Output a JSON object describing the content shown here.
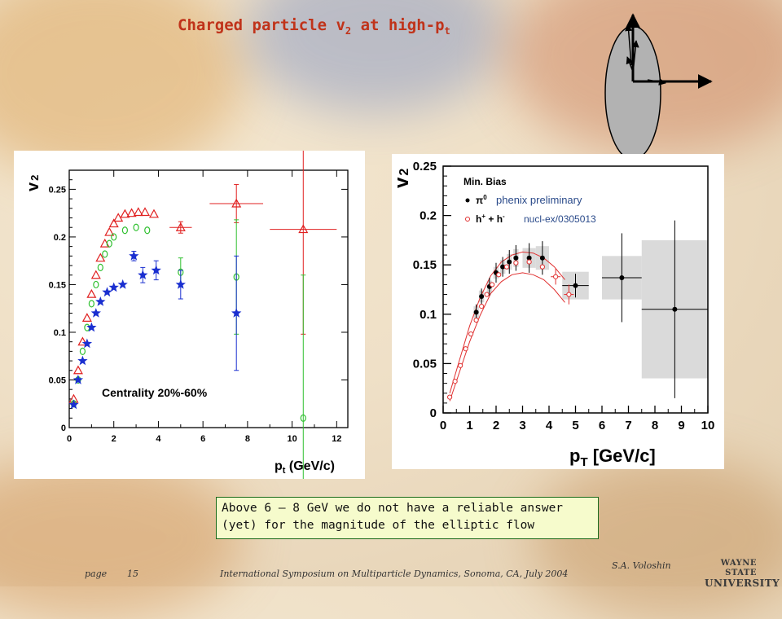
{
  "slide": {
    "title_main": "Charged particle v",
    "title_sub1": "2",
    "title_mid": " at high-p",
    "title_sub2": "t",
    "note_line1": "Above 6 – 8  GeV we do not have a reliable answer",
    "note_line2": "(yet) for the magnitude of the elliptic flow",
    "footer_page_label": "page",
    "footer_page_num": "15",
    "footer_conference": "International Symposium on Multiparticle  Dynamics, Sonoma, CA, July 2004",
    "footer_author": "S.A. Voloshin",
    "logo_line1": "WAYNE STATE",
    "logo_line2": "UNIVERSITY"
  },
  "chart_data": [
    {
      "type": "scatter",
      "ylabel": "v",
      "ylabel_sub": "2",
      "xlabel": "p",
      "xlabel_sub": "t",
      "xlabel_unit": " (GeV/c)",
      "annotation": "Centrality 20%-60%",
      "xlim": [
        0,
        12.5
      ],
      "ylim": [
        0,
        0.27
      ],
      "xticks": [
        "0",
        "2",
        "4",
        "6",
        "8",
        "10",
        "12"
      ],
      "yticks": [
        "0",
        "0.05",
        "0.1",
        "0.15",
        "0.2",
        "0.25"
      ],
      "series": [
        {
          "marker": "triangle",
          "color": "#e02020",
          "points": [
            {
              "x": 0.2,
              "y": 0.03
            },
            {
              "x": 0.4,
              "y": 0.06
            },
            {
              "x": 0.6,
              "y": 0.09
            },
            {
              "x": 0.8,
              "y": 0.115
            },
            {
              "x": 1.0,
              "y": 0.14
            },
            {
              "x": 1.2,
              "y": 0.16
            },
            {
              "x": 1.4,
              "y": 0.178
            },
            {
              "x": 1.6,
              "y": 0.193
            },
            {
              "x": 1.8,
              "y": 0.205
            },
            {
              "x": 2.0,
              "y": 0.214
            },
            {
              "x": 2.2,
              "y": 0.22
            },
            {
              "x": 2.5,
              "y": 0.224
            },
            {
              "x": 2.8,
              "y": 0.225
            },
            {
              "x": 3.1,
              "y": 0.226
            },
            {
              "x": 3.4,
              "y": 0.226
            },
            {
              "x": 3.8,
              "y": 0.224
            },
            {
              "x": 5.0,
              "y": 0.21,
              "xe": 0.5,
              "ye": 0.006
            },
            {
              "x": 7.5,
              "y": 0.235,
              "xe": 1.2,
              "ye": 0.02
            },
            {
              "x": 10.5,
              "y": 0.208,
              "xe": 1.5,
              "ye": 0.11
            }
          ]
        },
        {
          "marker": "circle",
          "color": "#30c030",
          "points": [
            {
              "x": 0.2,
              "y": 0.025
            },
            {
              "x": 0.4,
              "y": 0.05
            },
            {
              "x": 0.6,
              "y": 0.08
            },
            {
              "x": 0.8,
              "y": 0.105
            },
            {
              "x": 1.0,
              "y": 0.13
            },
            {
              "x": 1.2,
              "y": 0.15
            },
            {
              "x": 1.4,
              "y": 0.168
            },
            {
              "x": 1.6,
              "y": 0.182
            },
            {
              "x": 1.8,
              "y": 0.193
            },
            {
              "x": 2.0,
              "y": 0.2
            },
            {
              "x": 2.5,
              "y": 0.207
            },
            {
              "x": 3.0,
              "y": 0.21
            },
            {
              "x": 3.5,
              "y": 0.207
            },
            {
              "x": 5.0,
              "y": 0.163,
              "ye": 0.015
            },
            {
              "x": 7.5,
              "y": 0.158,
              "ye": 0.06
            },
            {
              "x": 10.5,
              "y": 0.01,
              "ye": 0.15
            }
          ]
        },
        {
          "marker": "star",
          "color": "#1a2fd0",
          "points": [
            {
              "x": 0.2,
              "y": 0.024
            },
            {
              "x": 0.4,
              "y": 0.05
            },
            {
              "x": 0.6,
              "y": 0.07
            },
            {
              "x": 0.8,
              "y": 0.088
            },
            {
              "x": 1.0,
              "y": 0.105
            },
            {
              "x": 1.2,
              "y": 0.12
            },
            {
              "x": 1.4,
              "y": 0.132
            },
            {
              "x": 1.7,
              "y": 0.142
            },
            {
              "x": 2.0,
              "y": 0.147
            },
            {
              "x": 2.4,
              "y": 0.15
            },
            {
              "x": 2.9,
              "y": 0.18,
              "ye": 0.005
            },
            {
              "x": 3.3,
              "y": 0.16,
              "ye": 0.008
            },
            {
              "x": 3.9,
              "y": 0.165,
              "ye": 0.01
            },
            {
              "x": 5.0,
              "y": 0.15,
              "ye": 0.015
            },
            {
              "x": 7.5,
              "y": 0.12,
              "ye": 0.06
            }
          ]
        }
      ]
    },
    {
      "type": "scatter",
      "ylabel": "v",
      "ylabel_sub": "2",
      "xlabel": "p",
      "xlabel_sub": "T",
      "xlabel_unit": " [GeV/c]",
      "legend_title": "Min. Bias",
      "legend_pi0": "π",
      "legend_pi0_sup": "0",
      "legend_h": "h",
      "legend_h_sup1": "+",
      "legend_h_plus": " + h",
      "legend_h_sup2": "-",
      "annotation_1": "phenix preliminary",
      "annotation_2": "nucl-ex/0305013",
      "xlim": [
        0,
        10
      ],
      "ylim": [
        0,
        0.25
      ],
      "xticks": [
        "0",
        "1",
        "2",
        "3",
        "4",
        "5",
        "6",
        "7",
        "8",
        "9",
        "10"
      ],
      "yticks": [
        "0",
        "0.05",
        "0.1",
        "0.15",
        "0.2",
        "0.25"
      ],
      "series": [
        {
          "name": "π0",
          "marker": "filled-circle",
          "color": "#000000",
          "points": [
            {
              "x": 1.25,
              "y": 0.102,
              "ye": 0.008,
              "sys_xe": 0.1,
              "sys_ye": 0.006
            },
            {
              "x": 1.45,
              "y": 0.118,
              "ye": 0.008,
              "sys_xe": 0.1,
              "sys_ye": 0.006
            },
            {
              "x": 1.75,
              "y": 0.128,
              "ye": 0.009,
              "sys_xe": 0.1,
              "sys_ye": 0.006
            },
            {
              "x": 2.0,
              "y": 0.142,
              "ye": 0.01,
              "sys_xe": 0.1,
              "sys_ye": 0.006
            },
            {
              "x": 2.25,
              "y": 0.148,
              "ye": 0.01,
              "sys_xe": 0.1,
              "sys_ye": 0.007
            },
            {
              "x": 2.5,
              "y": 0.153,
              "ye": 0.012,
              "sys_xe": 0.1,
              "sys_ye": 0.008
            },
            {
              "x": 2.75,
              "y": 0.157,
              "ye": 0.013,
              "sys_xe": 0.1,
              "sys_ye": 0.009
            },
            {
              "x": 3.25,
              "y": 0.157,
              "ye": 0.015,
              "sys_xe": 0.25,
              "sys_ye": 0.01
            },
            {
              "x": 3.75,
              "y": 0.157,
              "ye": 0.017,
              "sys_xe": 0.25,
              "sys_ye": 0.012
            },
            {
              "x": 5.0,
              "y": 0.129,
              "xe": 0.5,
              "ye": 0.012,
              "sys_xe": 0.5,
              "sys_ye": 0.014
            },
            {
              "x": 6.75,
              "y": 0.137,
              "xe": 0.75,
              "ye": 0.045,
              "sys_xe": 0.75,
              "sys_ye": 0.022
            },
            {
              "x": 8.75,
              "y": 0.105,
              "xe": 1.25,
              "ye": 0.09,
              "sys_xe": 1.25,
              "sys_ye": 0.07
            }
          ]
        },
        {
          "name": "h+ + h-",
          "marker": "open-circle",
          "color": "#e03030",
          "points": [
            {
              "x": 0.25,
              "y": 0.016
            },
            {
              "x": 0.45,
              "y": 0.032
            },
            {
              "x": 0.65,
              "y": 0.048
            },
            {
              "x": 0.85,
              "y": 0.065
            },
            {
              "x": 1.05,
              "y": 0.08
            },
            {
              "x": 1.25,
              "y": 0.094
            },
            {
              "x": 1.45,
              "y": 0.108
            },
            {
              "x": 1.65,
              "y": 0.12
            },
            {
              "x": 1.85,
              "y": 0.13
            },
            {
              "x": 2.1,
              "y": 0.14
            },
            {
              "x": 2.4,
              "y": 0.148
            },
            {
              "x": 2.75,
              "y": 0.152
            },
            {
              "x": 3.25,
              "y": 0.153
            },
            {
              "x": 3.75,
              "y": 0.148
            },
            {
              "x": 4.25,
              "y": 0.138,
              "ye": 0.008
            },
            {
              "x": 4.75,
              "y": 0.12,
              "ye": 0.01
            }
          ],
          "band_upper": [
            [
              0.25,
              0.02
            ],
            [
              0.6,
              0.052
            ],
            [
              1.0,
              0.088
            ],
            [
              1.4,
              0.117
            ],
            [
              1.8,
              0.139
            ],
            [
              2.2,
              0.153
            ],
            [
              2.6,
              0.16
            ],
            [
              3.0,
              0.163
            ],
            [
              3.4,
              0.162
            ],
            [
              3.8,
              0.157
            ],
            [
              4.2,
              0.148
            ],
            [
              4.6,
              0.135
            ]
          ],
          "band_lower": [
            [
              0.25,
              0.012
            ],
            [
              0.6,
              0.04
            ],
            [
              1.0,
              0.072
            ],
            [
              1.4,
              0.099
            ],
            [
              1.8,
              0.121
            ],
            [
              2.2,
              0.133
            ],
            [
              2.6,
              0.14
            ],
            [
              3.0,
              0.142
            ],
            [
              3.4,
              0.14
            ],
            [
              3.8,
              0.135
            ],
            [
              4.2,
              0.125
            ],
            [
              4.6,
              0.112
            ]
          ]
        }
      ]
    }
  ]
}
